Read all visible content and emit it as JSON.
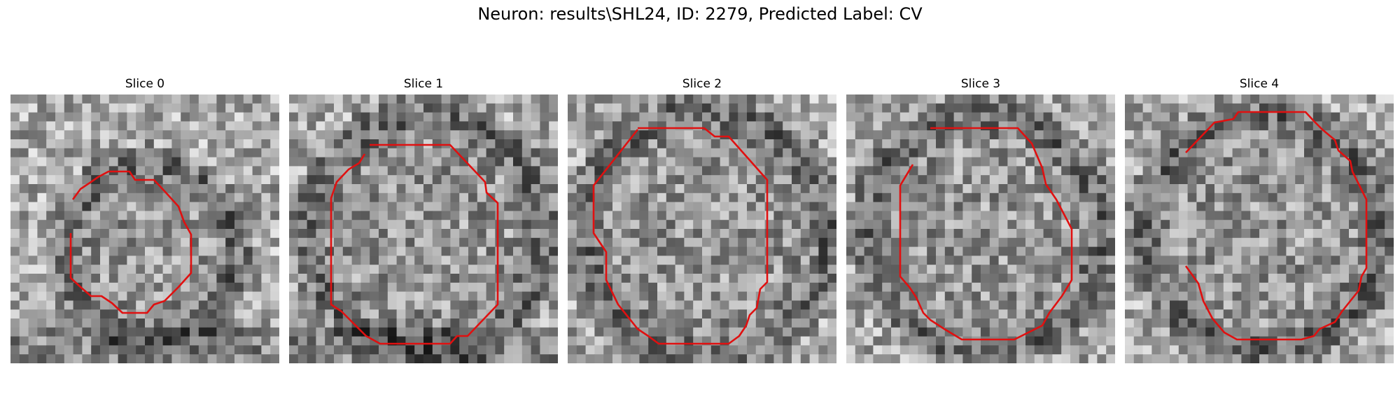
{
  "figure": {
    "title": "Neuron: results\\SHL24, ID: 2279, Predicted Label: CV",
    "outline_color": "#e01010"
  },
  "slices": [
    {
      "label": "Slice 0"
    },
    {
      "label": "Slice 1"
    },
    {
      "label": "Slice 2"
    },
    {
      "label": "Slice 3"
    },
    {
      "label": "Slice 4"
    }
  ]
}
